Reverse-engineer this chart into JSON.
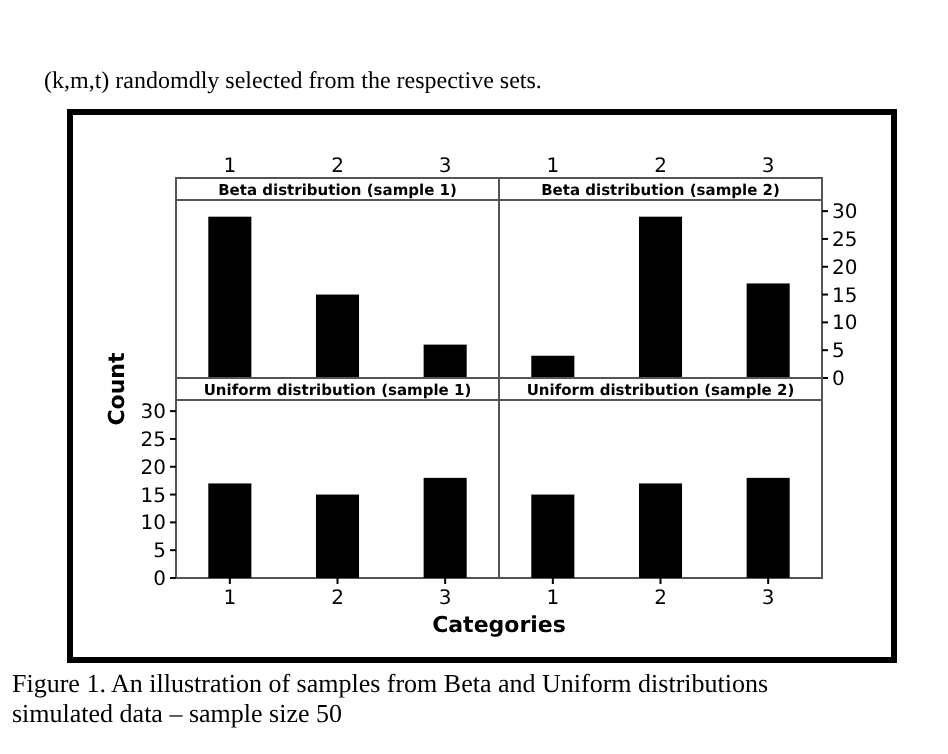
{
  "chart_data": [
    {
      "type": "bar",
      "title": "Beta distribution (sample 1)",
      "categories": [
        "1",
        "2",
        "3"
      ],
      "values": [
        29,
        15,
        6
      ],
      "color": "#000000",
      "ylim": [
        0,
        32
      ],
      "tick_labels": "x",
      "annotations": [
        "(k,m,t) randomdly selected from the respective sets.",
        "Figure 1.   An illustration of samples from Beta and Uniform distributions",
        "simulated data – sample size 50"
      ]
    },
    {
      "type": "bar",
      "title": "Beta distribution (sample 2)",
      "categories": [
        "1",
        "2",
        "3"
      ],
      "values": [
        4,
        29,
        17
      ],
      "color": "#000000",
      "ylim": [
        0,
        32
      ],
      "yticks": [
        0,
        5,
        10,
        15,
        20,
        25,
        30
      ]
    },
    {
      "type": "bar",
      "title": "Uniform distribution (sample 1)",
      "categories": [
        "1",
        "2",
        "3"
      ],
      "values": [
        17,
        15,
        18
      ],
      "color": "#000000",
      "ylim": [
        0,
        32
      ],
      "yticks": [
        0,
        5,
        10,
        15,
        20,
        25,
        30
      ],
      "xlabel": "Categories",
      "ylabel": "Count"
    },
    {
      "type": "bar",
      "title": "Uniform distribution (sample 2)",
      "categories": [
        "1",
        "2",
        "3"
      ],
      "values": [
        15,
        17,
        18
      ],
      "color": "#000000",
      "ylim": [
        0,
        32
      ],
      "tick_labels": "x"
    }
  ]
}
